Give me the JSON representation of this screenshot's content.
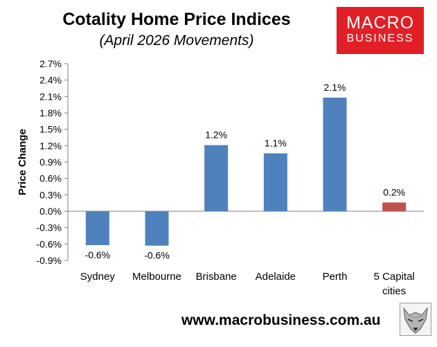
{
  "header": {
    "title": "Cotality Home Price Indices",
    "subtitle": "(April 2026 Movements)"
  },
  "logo": {
    "line1": "MACRO",
    "line2": "BUSINESS",
    "icon": "wolf-icon"
  },
  "footer": {
    "url": "www.macrobusiness.com.au"
  },
  "colors": {
    "bar": "#4f81bd",
    "highlight_bar": "#c0504d",
    "logo_bg": "#e11f26"
  },
  "chart_data": {
    "type": "bar",
    "title": "Cotality Home Price Indices",
    "subtitle": "(April 2026 Movements)",
    "ylabel": "Price Change",
    "categories": [
      "Sydney",
      "Melbourne",
      "Brisbane",
      "Adelaide",
      "Perth",
      "5 Capital cities"
    ],
    "category_lines": [
      [
        "Sydney"
      ],
      [
        "Melbourne"
      ],
      [
        "Brisbane"
      ],
      [
        "Adelaide"
      ],
      [
        "Perth"
      ],
      [
        "5 Capital",
        "cities"
      ]
    ],
    "values": [
      -0.6,
      -0.6,
      1.2,
      1.1,
      2.1,
      0.2
    ],
    "value_labels": [
      "-0.6%",
      "-0.6%",
      "1.2%",
      "1.1%",
      "2.1%",
      "0.2%"
    ],
    "plotted_values": [
      -0.62,
      -0.63,
      1.21,
      1.06,
      2.08,
      0.16
    ],
    "bar_colors": [
      "#4f81bd",
      "#4f81bd",
      "#4f81bd",
      "#4f81bd",
      "#4f81bd",
      "#c0504d"
    ],
    "ylim": [
      -0.9,
      2.7
    ],
    "yticks": [
      2.7,
      2.4,
      2.1,
      1.8,
      1.5,
      1.2,
      0.9,
      0.6,
      0.3,
      0.0,
      -0.3,
      -0.6,
      -0.9
    ],
    "ytick_labels": [
      "2.7%",
      "2.4%",
      "2.1%",
      "1.8%",
      "1.5%",
      "1.2%",
      "0.9%",
      "0.6%",
      "0.3%",
      "0.0%",
      "-0.3%",
      "-0.6%",
      "-0.9%"
    ],
    "grid": false,
    "legend": "none"
  }
}
